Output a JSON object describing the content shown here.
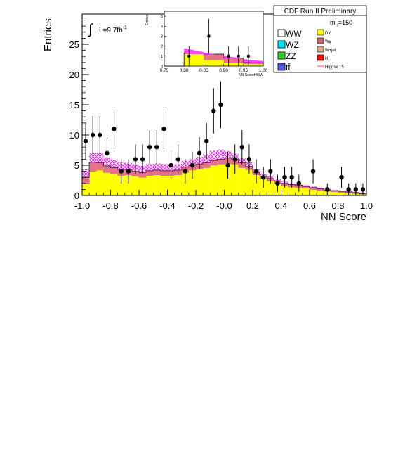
{
  "chart_data": {
    "type": "histogram",
    "xlabel": "NN Score",
    "ylabel": "Entries",
    "xlim": [
      -1.0,
      1.0
    ],
    "ylim": [
      0,
      30
    ],
    "xticks": [
      "-1.0",
      "-0.8",
      "-0.6",
      "-0.4",
      "-0.2",
      "-0.0",
      "0.2",
      "0.4",
      "0.6",
      "0.8",
      "1.0"
    ],
    "yticks": [
      "0",
      "5",
      "10",
      "15",
      "20",
      "25"
    ],
    "bins_x": [
      -1.0,
      -0.95,
      -0.9,
      -0.85,
      -0.8,
      -0.75,
      -0.7,
      -0.65,
      -0.6,
      -0.55,
      -0.5,
      -0.45,
      -0.4,
      -0.35,
      -0.3,
      -0.25,
      -0.2,
      -0.15,
      -0.1,
      -0.05,
      0.0,
      0.05,
      0.1,
      0.15,
      0.2,
      0.25,
      0.3,
      0.35,
      0.4,
      0.45,
      0.5,
      0.55,
      0.6,
      0.65,
      0.7,
      0.75,
      0.8,
      0.85,
      0.9,
      0.95
    ],
    "dy": [
      2.0,
      4.0,
      4.2,
      3.8,
      3.6,
      3.3,
      3.4,
      3.2,
      3.0,
      3.3,
      3.4,
      3.3,
      3.3,
      3.4,
      3.8,
      4.2,
      4.4,
      4.6,
      5.0,
      5.2,
      5.3,
      5.2,
      4.6,
      4.3,
      3.4,
      2.8,
      2.4,
      2.0,
      1.6,
      1.4,
      1.3,
      1.2,
      1.0,
      0.8,
      0.7,
      0.6,
      0.5,
      0.4,
      0.3,
      0.2
    ],
    "stack_top": [
      3.0,
      5.5,
      5.4,
      4.9,
      4.6,
      4.3,
      4.3,
      4.0,
      3.8,
      4.1,
      4.2,
      4.1,
      4.1,
      4.2,
      4.7,
      5.0,
      5.2,
      5.4,
      5.8,
      6.0,
      6.2,
      6.0,
      5.4,
      4.8,
      3.8,
      3.2,
      2.8,
      2.4,
      2.0,
      1.8,
      1.7,
      1.5,
      1.3,
      1.1,
      0.9,
      0.8,
      0.7,
      0.6,
      0.5,
      0.3
    ],
    "higgs_top": [
      4.3,
      7.0,
      7.0,
      6.3,
      5.9,
      5.5,
      5.4,
      5.1,
      4.9,
      5.2,
      5.3,
      5.2,
      5.1,
      5.2,
      5.7,
      6.0,
      6.4,
      6.8,
      7.4,
      7.6,
      7.3,
      6.9,
      6.2,
      5.5,
      4.4,
      3.6,
      3.2,
      2.7,
      2.3,
      2.0,
      1.9,
      1.7,
      1.5,
      1.3,
      1.1,
      0.9,
      0.8,
      0.7,
      0.6,
      0.4
    ],
    "data_points": [
      {
        "x": -0.975,
        "y": 9
      },
      {
        "x": -0.925,
        "y": 10
      },
      {
        "x": -0.875,
        "y": 10
      },
      {
        "x": -0.825,
        "y": 7
      },
      {
        "x": -0.775,
        "y": 11
      },
      {
        "x": -0.725,
        "y": 4
      },
      {
        "x": -0.675,
        "y": 4
      },
      {
        "x": -0.625,
        "y": 6
      },
      {
        "x": -0.575,
        "y": 6
      },
      {
        "x": -0.525,
        "y": 8
      },
      {
        "x": -0.475,
        "y": 8
      },
      {
        "x": -0.425,
        "y": 11
      },
      {
        "x": -0.375,
        "y": 5
      },
      {
        "x": -0.325,
        "y": 6
      },
      {
        "x": -0.275,
        "y": 4
      },
      {
        "x": -0.225,
        "y": 5
      },
      {
        "x": -0.175,
        "y": 7
      },
      {
        "x": -0.125,
        "y": 9
      },
      {
        "x": -0.075,
        "y": 14
      },
      {
        "x": -0.025,
        "y": 15
      },
      {
        "x": 0.025,
        "y": 5
      },
      {
        "x": 0.075,
        "y": 6
      },
      {
        "x": 0.125,
        "y": 8
      },
      {
        "x": 0.175,
        "y": 6
      },
      {
        "x": 0.225,
        "y": 4
      },
      {
        "x": 0.275,
        "y": 3
      },
      {
        "x": 0.325,
        "y": 4
      },
      {
        "x": 0.375,
        "y": 2
      },
      {
        "x": 0.425,
        "y": 3
      },
      {
        "x": 0.475,
        "y": 3
      },
      {
        "x": 0.525,
        "y": 2
      },
      {
        "x": 0.625,
        "y": 4
      },
      {
        "x": 0.725,
        "y": 1
      },
      {
        "x": 0.825,
        "y": 3
      },
      {
        "x": 0.875,
        "y": 1
      },
      {
        "x": 0.925,
        "y": 1
      },
      {
        "x": 0.975,
        "y": 1
      }
    ],
    "inset": {
      "xlabel": "NN ScoreHWW",
      "ylabel": "Entries",
      "xlim": [
        0.75,
        1.0
      ],
      "ylim": [
        0,
        5.5
      ],
      "xticks": [
        "0.75",
        "0.80",
        "0.85",
        "0.90",
        "0.95",
        "1.00"
      ],
      "yticks": [
        "0",
        "1",
        "2",
        "3",
        "4",
        "5"
      ],
      "bins_x": [
        0.75,
        0.8,
        0.85,
        0.9,
        0.95
      ],
      "dy": [
        0.0,
        1.2,
        0.6,
        0.3,
        0.2
      ],
      "stack_top": [
        0.0,
        1.3,
        1.2,
        0.8,
        0.4
      ],
      "higgs_start": [
        1.7,
        1.8,
        1.35,
        1.05,
        0.7
      ],
      "higgs_end": [
        1.7,
        1.4,
        1.05,
        0.75,
        0.5
      ],
      "data_points": [
        {
          "x": 0.8125,
          "y": 1
        },
        {
          "x": 0.8625,
          "y": 3
        },
        {
          "x": 0.9125,
          "y": 1
        },
        {
          "x": 0.9375,
          "y": 1
        },
        {
          "x": 0.9625,
          "y": 1
        }
      ]
    }
  },
  "header": {
    "title": "CDF Run II Preliminary",
    "luminosity": "L=9.7fb",
    "luminosity_sup": "-1",
    "integral_symbol": "∫",
    "mass_label_main": "m",
    "mass_label_sub": "H",
    "mass_label_value": "=150"
  },
  "legend": {
    "left": [
      {
        "label": "WW",
        "color": "#ffffff"
      },
      {
        "label": "WZ",
        "color": "#00e5ff"
      },
      {
        "label": "ZZ",
        "color": "#33cc33"
      },
      {
        "label": "tt̄",
        "color": "#5555dd"
      }
    ],
    "right": [
      {
        "label": "DY",
        "color": "#ffff00"
      },
      {
        "label": "Wγ",
        "color": "#cc6677"
      },
      {
        "label": "W+jet",
        "color": "#d8b090"
      },
      {
        "label": "H",
        "color": "#ff0000"
      },
      {
        "label": "Higgsx 15",
        "color": "#ff4444"
      }
    ]
  },
  "colors": {
    "dy": "#ffff00",
    "wgamma": "#e8708a",
    "higgs_band": "#ff00ff",
    "data": "#000000"
  }
}
